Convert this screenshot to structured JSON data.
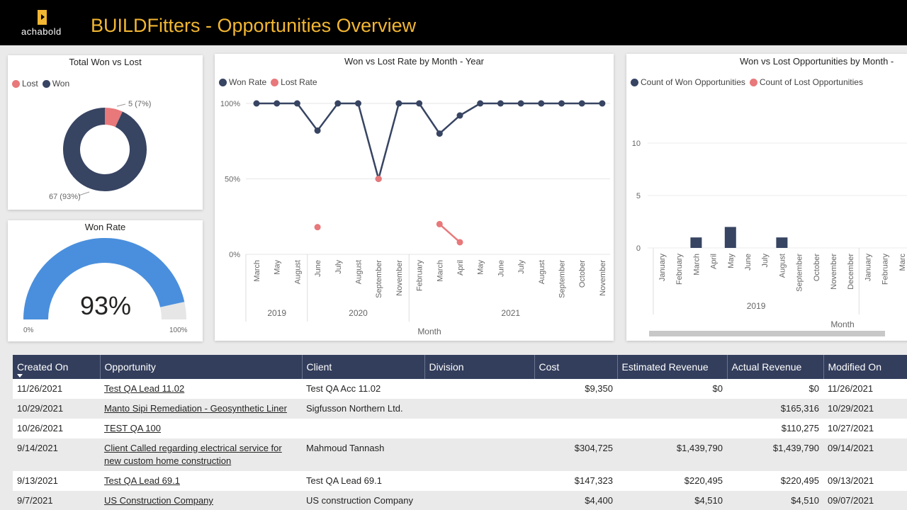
{
  "header": {
    "logo_text": "achabold",
    "title": "BUILDFitters - Opportunities Overview"
  },
  "colors": {
    "won": "#374462",
    "lost": "#e8787a",
    "gauge": "#4a8fdd",
    "gauge_bg": "#e6e6e6",
    "accent": "#f2b632"
  },
  "donut": {
    "title": "Total Won vs Lost",
    "legend": [
      "Lost",
      "Won"
    ],
    "lost_label": "5 (7%)",
    "won_label": "67 (93%)"
  },
  "gauge": {
    "title": "Won Rate",
    "value_label": "93%",
    "min_label": "0%",
    "max_label": "100%"
  },
  "chart_data": [
    {
      "type": "pie",
      "title": "Total Won vs Lost",
      "categories": [
        "Lost",
        "Won"
      ],
      "values": [
        5,
        67
      ]
    },
    {
      "type": "line",
      "title": "Won vs Lost Rate by Month - Year",
      "xlabel": "Month",
      "x": [
        "March",
        "May",
        "August",
        "June",
        "July",
        "August",
        "September",
        "November",
        "February",
        "March",
        "April",
        "May",
        "June",
        "July",
        "August",
        "September",
        "October",
        "November"
      ],
      "groups": [
        {
          "label": "2019",
          "count": 3
        },
        {
          "label": "2020",
          "count": 5
        },
        {
          "label": "2021",
          "count": 10
        }
      ],
      "yticks": [
        "100%",
        "50%",
        "0%"
      ],
      "ylim": [
        0,
        100
      ],
      "series": [
        {
          "name": "Won Rate",
          "values": [
            100,
            100,
            100,
            82,
            100,
            100,
            50,
            100,
            100,
            80,
            92,
            100,
            100,
            100,
            100,
            100,
            100,
            100
          ]
        },
        {
          "name": "Lost Rate",
          "values": [
            null,
            null,
            null,
            18,
            null,
            null,
            50,
            null,
            null,
            20,
            8,
            null,
            null,
            null,
            null,
            null,
            null,
            null
          ]
        }
      ]
    },
    {
      "type": "bar",
      "title": "Won vs Lost Opportunities by Month -",
      "xlabel": "Month",
      "categories": [
        "January",
        "February",
        "March",
        "April",
        "May",
        "June",
        "July",
        "August",
        "September",
        "October",
        "November",
        "December",
        "January",
        "February",
        "Marc"
      ],
      "groups": [
        {
          "label": "2019",
          "count": 12
        }
      ],
      "yticks": [
        "10",
        "5",
        "0"
      ],
      "ylim": [
        0,
        12
      ],
      "series": [
        {
          "name": "Count of Won Opportunities",
          "values": [
            0,
            0,
            1,
            0,
            2,
            0,
            0,
            1,
            0,
            0,
            0,
            0,
            0,
            0,
            0
          ]
        },
        {
          "name": "Count of Lost Opportunities",
          "values": [
            0,
            0,
            0,
            0,
            0,
            0,
            0,
            0,
            0,
            0,
            0,
            0,
            0,
            0,
            0
          ]
        }
      ]
    }
  ],
  "table": {
    "headers": [
      "Created On",
      "Opportunity",
      "Client",
      "Division",
      "Cost",
      "Estimated Revenue",
      "Actual Revenue",
      "Modified On"
    ],
    "rows": [
      {
        "created": "11/26/2021",
        "opportunity": "Test QA Lead 11.02",
        "client": "Test QA Acc 11.02",
        "division": "",
        "cost": "$9,350",
        "est": "$0",
        "actual": "$0",
        "modified": "11/26/2021"
      },
      {
        "created": "10/29/2021",
        "opportunity": "Manto Sipi Remediation - Geosynthetic Liner",
        "client": "Sigfusson Northern Ltd.",
        "division": "",
        "cost": "",
        "est": "",
        "actual": "$165,316",
        "modified": "10/29/2021"
      },
      {
        "created": "10/26/2021",
        "opportunity": "TEST QA 100",
        "client": "",
        "division": "",
        "cost": "",
        "est": "",
        "actual": "$110,275",
        "modified": "10/27/2021"
      },
      {
        "created": "9/14/2021",
        "opportunity": "Client Called regarding electrical service for new custom home construction",
        "client": "Mahmoud Tannash",
        "division": "",
        "cost": "$304,725",
        "est": "$1,439,790",
        "actual": "$1,439,790",
        "modified": "09/14/2021"
      },
      {
        "created": "9/13/2021",
        "opportunity": "Test QA Lead 69.1",
        "client": "Test QA Lead 69.1",
        "division": "",
        "cost": "$147,323",
        "est": "$220,495",
        "actual": "$220,495",
        "modified": "09/13/2021"
      },
      {
        "created": "9/7/2021",
        "opportunity": "US Construction Company",
        "client": "US construction Company",
        "division": "",
        "cost": "$4,400",
        "est": "$4,510",
        "actual": "$4,510",
        "modified": "09/07/2021"
      }
    ]
  }
}
